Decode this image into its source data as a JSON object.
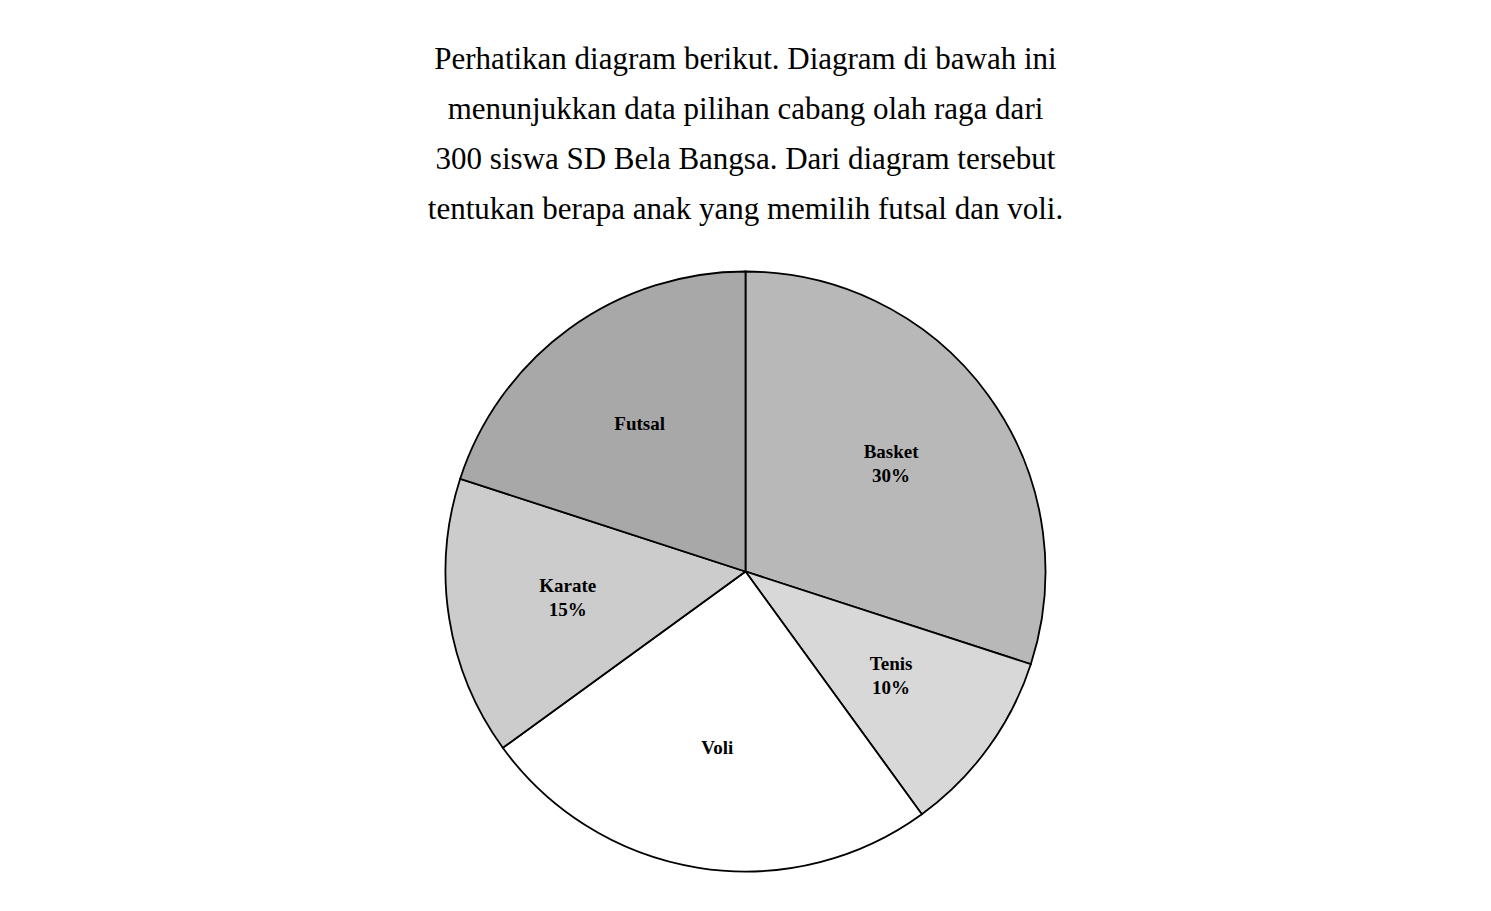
{
  "chart_data": {
    "type": "pie",
    "annotations": [
      "Perhatikan diagram berikut. Diagram di bawah ini",
      "menunjukkan data pilihan cabang olah raga dari",
      "300 siswa SD Bela Bangsa. Dari diagram tersebut",
      "tentukan berapa anak yang memilih futsal dan voli."
    ],
    "categories": [
      "Basket",
      "Tenis",
      "Voli",
      "Karate",
      "Futsal"
    ],
    "values": [
      30,
      10,
      25,
      15,
      20
    ],
    "value_labels": [
      "30%",
      "10%",
      null,
      "15%",
      null
    ],
    "colors": [
      "#b8b8b8",
      "#d8d8d8",
      "#ffffff",
      "#cccccc",
      "#a8a8a8"
    ],
    "data_labels": true
  }
}
